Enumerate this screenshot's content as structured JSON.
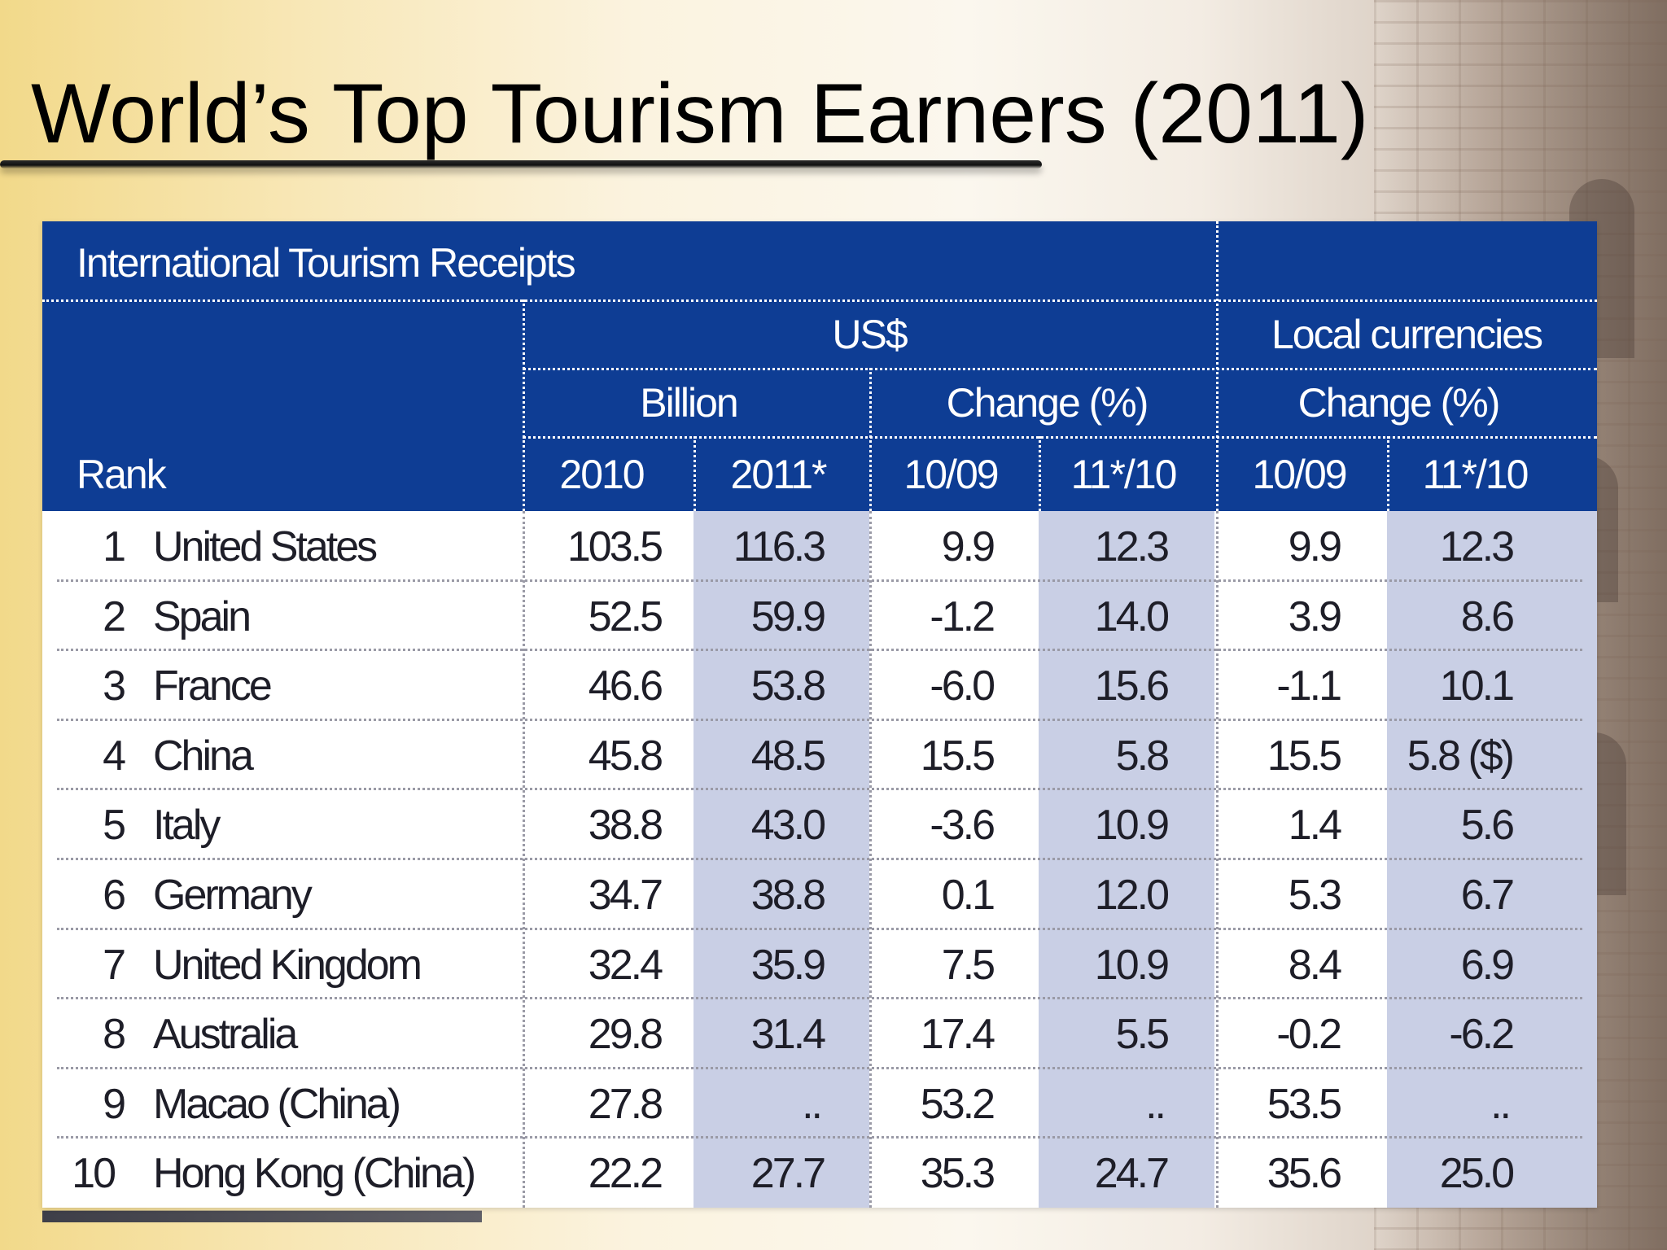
{
  "slide": {
    "title": "World’s Top Tourism Earners (2011)"
  },
  "table": {
    "caption": "International Tourism Receipts",
    "group_usd": "US$",
    "group_local": "Local currencies",
    "sub_billion": "Billion",
    "sub_change_usd": "Change (%)",
    "sub_change_local": "Change (%)",
    "col_rank": "Rank",
    "col_2010": "2010",
    "col_2011": "2011*",
    "col_usd_1009": "10/09",
    "col_usd_1110": "11*/10",
    "col_loc_1009": "10/09",
    "col_loc_1110": "11*/10",
    "rows": [
      {
        "rank": "1",
        "country": "United States",
        "b2010": "103.5",
        "b2011": "116.3",
        "usd1009": "9.9",
        "usd1110": "12.3",
        "loc1009": "9.9",
        "loc1110": "12.3"
      },
      {
        "rank": "2",
        "country": "Spain",
        "b2010": "52.5",
        "b2011": "59.9",
        "usd1009": "-1.2",
        "usd1110": "14.0",
        "loc1009": "3.9",
        "loc1110": "8.6"
      },
      {
        "rank": "3",
        "country": "France",
        "b2010": "46.6",
        "b2011": "53.8",
        "usd1009": "-6.0",
        "usd1110": "15.6",
        "loc1009": "-1.1",
        "loc1110": "10.1"
      },
      {
        "rank": "4",
        "country": "China",
        "b2010": "45.8",
        "b2011": "48.5",
        "usd1009": "15.5",
        "usd1110": "5.8",
        "loc1009": "15.5",
        "loc1110": "5.8 ($)"
      },
      {
        "rank": "5",
        "country": "Italy",
        "b2010": "38.8",
        "b2011": "43.0",
        "usd1009": "-3.6",
        "usd1110": "10.9",
        "loc1009": "1.4",
        "loc1110": "5.6"
      },
      {
        "rank": "6",
        "country": "Germany",
        "b2010": "34.7",
        "b2011": "38.8",
        "usd1009": "0.1",
        "usd1110": "12.0",
        "loc1009": "5.3",
        "loc1110": "6.7"
      },
      {
        "rank": "7",
        "country": "United Kingdom",
        "b2010": "32.4",
        "b2011": "35.9",
        "usd1009": "7.5",
        "usd1110": "10.9",
        "loc1009": "8.4",
        "loc1110": "6.9"
      },
      {
        "rank": "8",
        "country": "Australia",
        "b2010": "29.8",
        "b2011": "31.4",
        "usd1009": "17.4",
        "usd1110": "5.5",
        "loc1009": "-0.2",
        "loc1110": "-6.2"
      },
      {
        "rank": "9",
        "country": "Macao (China)",
        "b2010": "27.8",
        "b2011": "..",
        "usd1009": "53.2",
        "usd1110": "..",
        "loc1009": "53.5",
        "loc1110": ".."
      },
      {
        "rank": "10",
        "country": "Hong Kong (China)",
        "b2010": "22.2",
        "b2011": "27.7",
        "usd1009": "35.3",
        "usd1110": "24.7",
        "loc1009": "35.6",
        "loc1110": "25.0"
      }
    ]
  },
  "colors": {
    "header_blue": "#0e3d94",
    "shaded_column": "#c9cfe5"
  }
}
